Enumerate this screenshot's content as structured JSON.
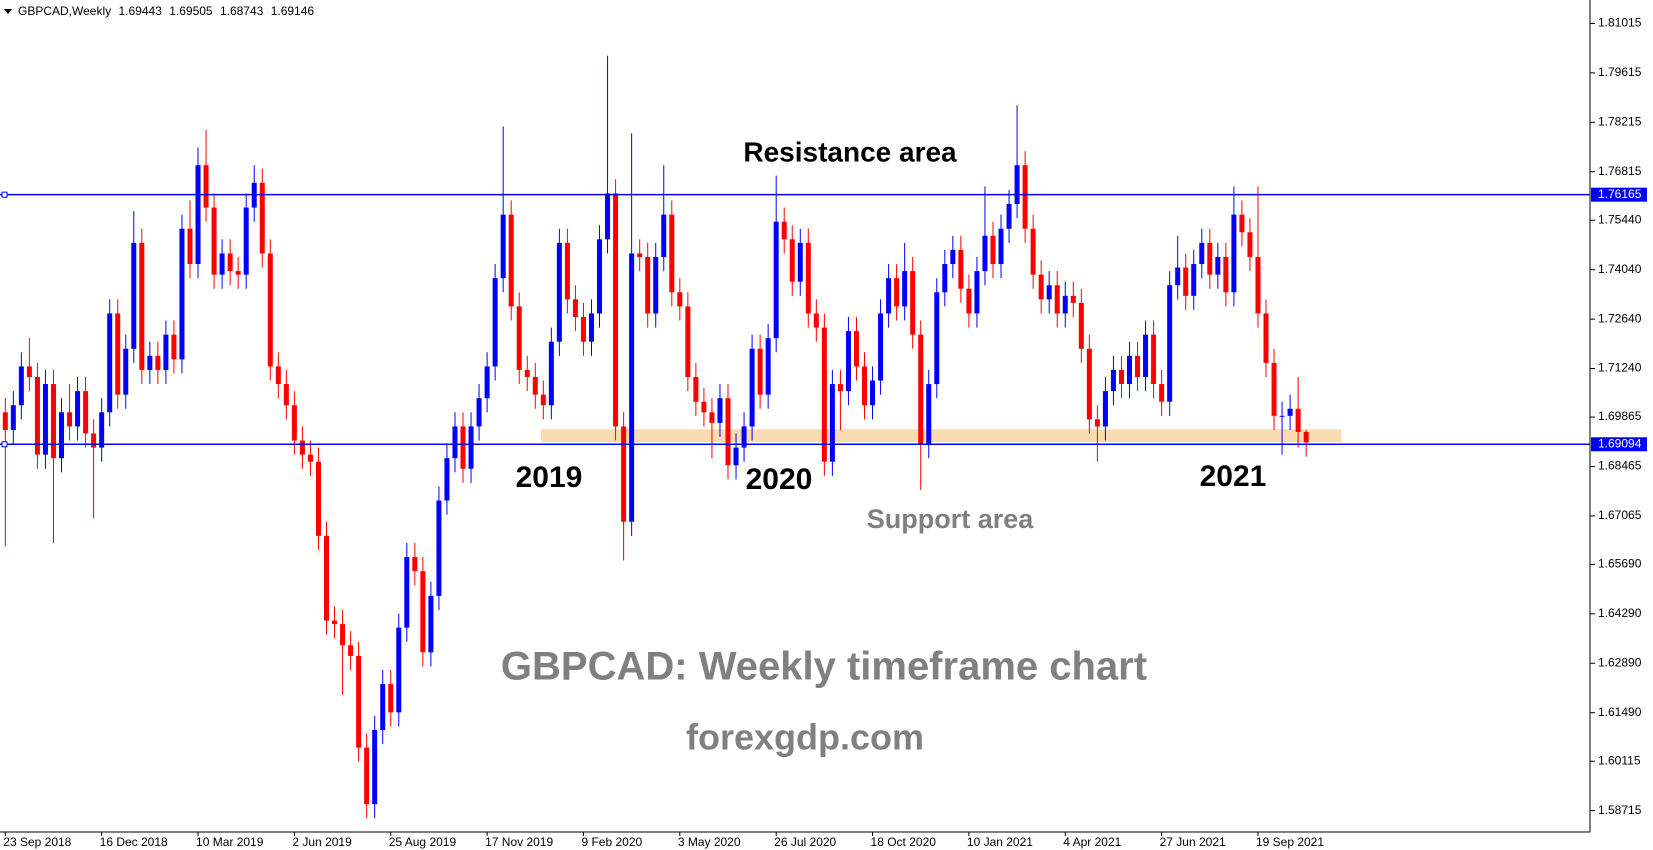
{
  "chart_data": {
    "type": "candlestick",
    "title": "GBPCAD,Weekly",
    "categories": [
      "23 Sep 2018",
      null,
      null,
      null,
      null,
      null,
      null,
      null,
      null,
      null,
      null,
      null,
      "16 Dec 2018",
      null,
      null,
      null,
      null,
      null,
      null,
      null,
      null,
      null,
      null,
      null,
      "10 Mar 2019",
      null,
      null,
      null,
      null,
      null,
      null,
      null,
      null,
      null,
      null,
      null,
      "2 Jun 2019",
      null,
      null,
      null,
      null,
      null,
      null,
      null,
      null,
      null,
      null,
      null,
      "25 Aug 2019",
      null,
      null,
      null,
      null,
      null,
      null,
      null,
      null,
      null,
      null,
      null,
      "17 Nov 2019",
      null,
      null,
      null,
      null,
      null,
      null,
      null,
      null,
      null,
      null,
      null,
      "9 Feb 2020",
      null,
      null,
      null,
      null,
      null,
      null,
      null,
      null,
      null,
      null,
      null,
      "3 May 2020",
      null,
      null,
      null,
      null,
      null,
      null,
      null,
      null,
      null,
      null,
      null,
      "26 Jul 2020",
      null,
      null,
      null,
      null,
      null,
      null,
      null,
      null,
      null,
      null,
      null,
      "18 Oct 2020",
      null,
      null,
      null,
      null,
      null,
      null,
      null,
      null,
      null,
      null,
      null,
      "10 Jan 2021",
      null,
      null,
      null,
      null,
      null,
      null,
      null,
      null,
      null,
      null,
      null,
      "4 Apr 2021",
      null,
      null,
      null,
      null,
      null,
      null,
      null,
      null,
      null,
      null,
      null,
      "27 Jun 2021",
      null,
      null,
      null,
      null,
      null,
      null,
      null,
      null,
      null,
      null,
      null,
      "19 Sep 2021",
      null,
      null,
      null,
      null,
      null,
      null
    ],
    "open": [
      1.7,
      1.695,
      1.702,
      1.713,
      1.71,
      1.688,
      1.708,
      1.687,
      1.7,
      1.696,
      1.706,
      1.694,
      1.69,
      1.7,
      1.728,
      1.705,
      1.718,
      1.748,
      1.712,
      1.716,
      1.712,
      1.722,
      1.715,
      1.752,
      1.742,
      1.77,
      1.758,
      1.739,
      1.745,
      1.74,
      1.739,
      1.758,
      1.765,
      1.745,
      1.713,
      1.708,
      1.702,
      1.692,
      1.688,
      1.686,
      1.665,
      1.641,
      1.64,
      1.634,
      1.631,
      1.605,
      1.589,
      1.61,
      1.623,
      1.615,
      1.639,
      1.659,
      1.655,
      1.632,
      1.648,
      1.675,
      1.687,
      1.696,
      1.684,
      1.696,
      1.704,
      1.713,
      1.738,
      1.756,
      1.73,
      1.712,
      1.71,
      1.705,
      1.702,
      1.72,
      1.748,
      1.732,
      1.727,
      1.72,
      1.728,
      1.749,
      1.762,
      1.696,
      1.669,
      1.745,
      1.744,
      1.728,
      1.744,
      1.756,
      1.734,
      1.73,
      1.71,
      1.703,
      1.7,
      1.697,
      1.704,
      1.685,
      1.69,
      1.696,
      1.718,
      1.705,
      1.721,
      1.754,
      1.749,
      1.737,
      1.748,
      1.728,
      1.724,
      1.686,
      1.708,
      1.706,
      1.723,
      1.713,
      1.702,
      1.709,
      1.728,
      1.738,
      1.73,
      1.74,
      1.722,
      1.691,
      1.708,
      1.734,
      1.742,
      1.746,
      1.735,
      1.728,
      1.74,
      1.75,
      1.742,
      1.752,
      1.759,
      1.77,
      1.752,
      1.739,
      1.732,
      1.736,
      1.728,
      1.733,
      1.731,
      1.718,
      1.698,
      1.696,
      1.706,
      1.712,
      1.708,
      1.716,
      1.71,
      1.722,
      1.708,
      1.703,
      1.736,
      1.741,
      1.733,
      1.742,
      1.748,
      1.739,
      1.744,
      1.734,
      1.756,
      1.751,
      1.744,
      1.728,
      1.714,
      1.699,
      1.699,
      1.701,
      1.69443
    ],
    "high": [
      1.704,
      1.706,
      1.717,
      1.721,
      1.714,
      1.712,
      1.712,
      1.704,
      1.708,
      1.71,
      1.71,
      1.698,
      1.704,
      1.732,
      1.732,
      1.722,
      1.757,
      1.752,
      1.72,
      1.72,
      1.726,
      1.726,
      1.756,
      1.76,
      1.775,
      1.78,
      1.762,
      1.749,
      1.749,
      1.744,
      1.762,
      1.77,
      1.769,
      1.749,
      1.717,
      1.712,
      1.706,
      1.696,
      1.692,
      1.69,
      1.669,
      1.645,
      1.644,
      1.638,
      1.635,
      1.609,
      1.614,
      1.627,
      1.627,
      1.643,
      1.663,
      1.663,
      1.659,
      1.652,
      1.679,
      1.691,
      1.7,
      1.7,
      1.7,
      1.708,
      1.717,
      1.742,
      1.781,
      1.76,
      1.734,
      1.716,
      1.714,
      1.709,
      1.724,
      1.752,
      1.752,
      1.736,
      1.731,
      1.732,
      1.753,
      1.801,
      1.766,
      1.7,
      1.779,
      1.749,
      1.748,
      1.748,
      1.77,
      1.76,
      1.738,
      1.734,
      1.714,
      1.707,
      1.704,
      1.708,
      1.708,
      1.694,
      1.7,
      1.722,
      1.722,
      1.725,
      1.767,
      1.758,
      1.753,
      1.752,
      1.752,
      1.732,
      1.728,
      1.712,
      1.712,
      1.727,
      1.727,
      1.717,
      1.713,
      1.732,
      1.742,
      1.742,
      1.748,
      1.744,
      1.726,
      1.712,
      1.738,
      1.746,
      1.75,
      1.75,
      1.739,
      1.744,
      1.764,
      1.754,
      1.756,
      1.763,
      1.787,
      1.774,
      1.756,
      1.743,
      1.74,
      1.74,
      1.737,
      1.737,
      1.735,
      1.722,
      1.702,
      1.71,
      1.716,
      1.716,
      1.72,
      1.72,
      1.726,
      1.726,
      1.712,
      1.74,
      1.75,
      1.745,
      1.746,
      1.752,
      1.752,
      1.748,
      1.748,
      1.764,
      1.76,
      1.755,
      1.764,
      1.732,
      1.718,
      1.703,
      1.705,
      1.71,
      1.69505
    ],
    "low": [
      1.662,
      1.691,
      1.698,
      1.706,
      1.684,
      1.684,
      1.663,
      1.683,
      1.692,
      1.692,
      1.69,
      1.67,
      1.686,
      1.696,
      1.701,
      1.701,
      1.714,
      1.708,
      1.708,
      1.708,
      1.708,
      1.711,
      1.711,
      1.738,
      1.738,
      1.754,
      1.735,
      1.735,
      1.736,
      1.735,
      1.735,
      1.754,
      1.741,
      1.709,
      1.704,
      1.698,
      1.688,
      1.684,
      1.682,
      1.661,
      1.637,
      1.636,
      1.62,
      1.627,
      1.601,
      1.585,
      1.585,
      1.606,
      1.611,
      1.611,
      1.635,
      1.651,
      1.628,
      1.628,
      1.644,
      1.671,
      1.683,
      1.68,
      1.68,
      1.692,
      1.7,
      1.709,
      1.734,
      1.726,
      1.708,
      1.706,
      1.701,
      1.698,
      1.698,
      1.716,
      1.728,
      1.723,
      1.716,
      1.716,
      1.724,
      1.745,
      1.692,
      1.658,
      1.665,
      1.74,
      1.724,
      1.724,
      1.74,
      1.73,
      1.726,
      1.706,
      1.699,
      1.696,
      1.687,
      1.693,
      1.681,
      1.681,
      1.686,
      1.692,
      1.701,
      1.701,
      1.717,
      1.745,
      1.733,
      1.733,
      1.724,
      1.72,
      1.682,
      1.682,
      1.695,
      1.702,
      1.709,
      1.698,
      1.698,
      1.705,
      1.724,
      1.726,
      1.726,
      1.718,
      1.678,
      1.687,
      1.704,
      1.73,
      1.738,
      1.731,
      1.724,
      1.724,
      1.736,
      1.738,
      1.738,
      1.748,
      1.755,
      1.748,
      1.735,
      1.728,
      1.728,
      1.724,
      1.724,
      1.727,
      1.714,
      1.694,
      1.686,
      1.692,
      1.702,
      1.704,
      1.704,
      1.706,
      1.706,
      1.704,
      1.699,
      1.699,
      1.732,
      1.729,
      1.729,
      1.738,
      1.735,
      1.735,
      1.73,
      1.73,
      1.747,
      1.74,
      1.724,
      1.71,
      1.695,
      1.688,
      1.695,
      1.69,
      1.68743
    ],
    "close": [
      1.695,
      1.702,
      1.713,
      1.71,
      1.688,
      1.708,
      1.687,
      1.7,
      1.696,
      1.706,
      1.694,
      1.69,
      1.7,
      1.728,
      1.705,
      1.718,
      1.748,
      1.712,
      1.716,
      1.712,
      1.722,
      1.715,
      1.752,
      1.742,
      1.77,
      1.758,
      1.739,
      1.745,
      1.74,
      1.739,
      1.758,
      1.765,
      1.745,
      1.713,
      1.708,
      1.702,
      1.692,
      1.688,
      1.686,
      1.665,
      1.641,
      1.64,
      1.634,
      1.631,
      1.605,
      1.589,
      1.61,
      1.623,
      1.615,
      1.639,
      1.659,
      1.655,
      1.632,
      1.648,
      1.675,
      1.687,
      1.696,
      1.684,
      1.696,
      1.704,
      1.713,
      1.738,
      1.756,
      1.73,
      1.712,
      1.71,
      1.705,
      1.702,
      1.72,
      1.748,
      1.732,
      1.727,
      1.72,
      1.728,
      1.749,
      1.762,
      1.696,
      1.669,
      1.745,
      1.744,
      1.728,
      1.744,
      1.756,
      1.734,
      1.73,
      1.71,
      1.703,
      1.7,
      1.697,
      1.704,
      1.685,
      1.69,
      1.696,
      1.718,
      1.705,
      1.721,
      1.754,
      1.749,
      1.737,
      1.748,
      1.728,
      1.724,
      1.686,
      1.708,
      1.706,
      1.723,
      1.713,
      1.702,
      1.709,
      1.728,
      1.738,
      1.73,
      1.74,
      1.722,
      1.691,
      1.708,
      1.734,
      1.742,
      1.746,
      1.735,
      1.728,
      1.74,
      1.75,
      1.742,
      1.752,
      1.759,
      1.77,
      1.752,
      1.739,
      1.732,
      1.736,
      1.728,
      1.733,
      1.731,
      1.718,
      1.698,
      1.696,
      1.706,
      1.712,
      1.708,
      1.716,
      1.71,
      1.722,
      1.708,
      1.703,
      1.736,
      1.741,
      1.733,
      1.742,
      1.748,
      1.739,
      1.744,
      1.734,
      1.756,
      1.751,
      1.744,
      1.728,
      1.714,
      1.699,
      1.699,
      1.701,
      1.69443,
      1.69146
    ],
    "up_color": "#0000ff",
    "down_color": "#ff0000",
    "ylim": [
      1.5811,
      1.8153
    ],
    "yticks": [
      1.81015,
      1.79615,
      1.78215,
      1.76815,
      {
        "value": 1.7544,
        "label": "1.75440"
      },
      {
        "value": 1.7404,
        "label": "1.74040"
      },
      {
        "value": 1.7264,
        "label": "1.72640"
      },
      {
        "value": 1.7124,
        "label": "1.71240"
      },
      1.69865,
      1.68465,
      1.67065,
      {
        "value": 1.6569,
        "label": "1.65690"
      },
      {
        "value": 1.6429,
        "label": "1.64290"
      },
      {
        "value": 1.6289,
        "label": "1.62890"
      },
      {
        "value": 1.6149,
        "label": "1.61490"
      },
      1.60115,
      1.58715
    ],
    "hlines": [
      1.76165,
      1.69094
    ],
    "hline_color": "#0000ff",
    "support_zone": [
      1.6916,
      1.6952
    ],
    "zone_color": "#fbdcb0",
    "annotations": [
      "Resistance area",
      "2019",
      "2020",
      "2021",
      "Support area",
      "GBPCAD: Weekly timeframe chart",
      "forexgdp.com"
    ]
  }
}
